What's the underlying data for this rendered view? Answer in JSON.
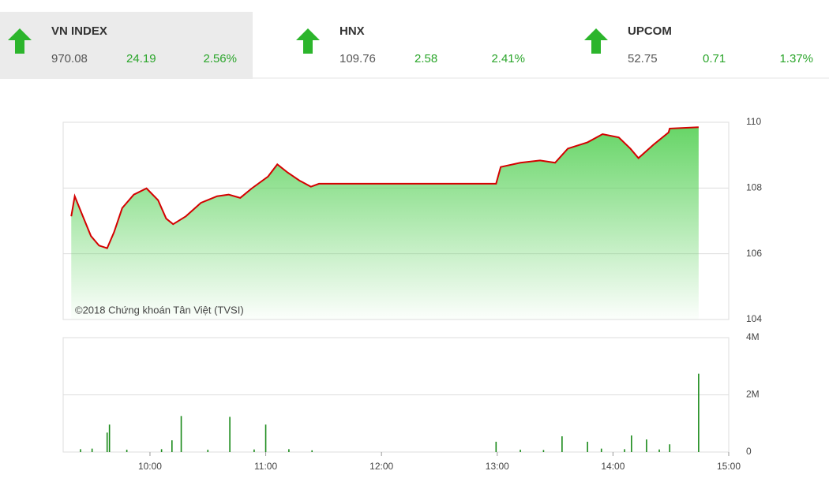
{
  "indices": [
    {
      "name": "VN INDEX",
      "value": "970.08",
      "change": "24.19",
      "percent": "2.56%"
    },
    {
      "name": "HNX",
      "value": "109.76",
      "change": "2.58",
      "percent": "2.41%"
    },
    {
      "name": "UPCOM",
      "value": "52.75",
      "change": "0.71",
      "percent": "1.37%"
    }
  ],
  "chart_data": [
    {
      "type": "line",
      "annotation": "©2018 Chứng khoán Tân Việt (TVSI)",
      "color": "#d40000",
      "fill": "#5fd35f",
      "x": [
        9.32,
        9.35,
        9.42,
        9.49,
        9.56,
        9.63,
        9.69,
        9.76,
        9.86,
        9.97,
        10.07,
        10.14,
        10.2,
        10.31,
        10.44,
        10.58,
        10.68,
        10.78,
        10.88,
        11.02,
        11.1,
        11.19,
        11.29,
        11.39,
        11.46,
        12.99,
        13.03,
        13.2,
        13.37,
        13.5,
        13.61,
        13.78,
        13.91,
        14.05,
        14.15,
        14.22,
        14.35,
        14.48,
        14.49,
        14.74
      ],
      "values": [
        107.14,
        107.75,
        107.14,
        106.54,
        106.25,
        106.17,
        106.66,
        107.39,
        107.8,
        107.99,
        107.63,
        107.07,
        106.9,
        107.14,
        107.55,
        107.75,
        107.8,
        107.7,
        107.99,
        108.35,
        108.72,
        108.47,
        108.23,
        108.04,
        108.13,
        108.13,
        108.64,
        108.77,
        108.84,
        108.77,
        109.2,
        109.39,
        109.64,
        109.54,
        109.2,
        108.91,
        109.32,
        109.69,
        109.81,
        109.85
      ],
      "xlim": [
        9.25,
        15
      ],
      "ylim": [
        104,
        110
      ],
      "yticks": [
        104,
        106,
        108,
        110
      ],
      "grid": true
    },
    {
      "type": "bar",
      "color": "#1a8a1a",
      "x": [
        9.4,
        9.5,
        9.63,
        9.65,
        9.8,
        10.1,
        10.19,
        10.27,
        10.5,
        10.69,
        10.9,
        11.0,
        11.2,
        11.4,
        12.99,
        13.2,
        13.4,
        13.56,
        13.78,
        13.9,
        14.1,
        14.16,
        14.29,
        14.4,
        14.49,
        14.74
      ],
      "values": [
        100000,
        120000,
        680000,
        960000,
        80000,
        100000,
        410000,
        1260000,
        80000,
        1230000,
        90000,
        960000,
        100000,
        60000,
        360000,
        80000,
        70000,
        550000,
        360000,
        120000,
        100000,
        580000,
        440000,
        90000,
        270000,
        2740000
      ],
      "xlim": [
        9.25,
        15
      ],
      "xticks": [
        {
          "value": 10,
          "label": "10:00"
        },
        {
          "value": 11,
          "label": "11:00"
        },
        {
          "value": 12,
          "label": "12:00"
        },
        {
          "value": 13,
          "label": "13:00"
        },
        {
          "value": 14,
          "label": "14:00"
        },
        {
          "value": 15,
          "label": "15:00"
        }
      ],
      "ylim": [
        0,
        4000000
      ],
      "yticks": [
        0,
        {
          "value": 2000000,
          "label": "2M"
        },
        {
          "value": 4000000,
          "label": "4M"
        }
      ],
      "grid": true
    }
  ]
}
